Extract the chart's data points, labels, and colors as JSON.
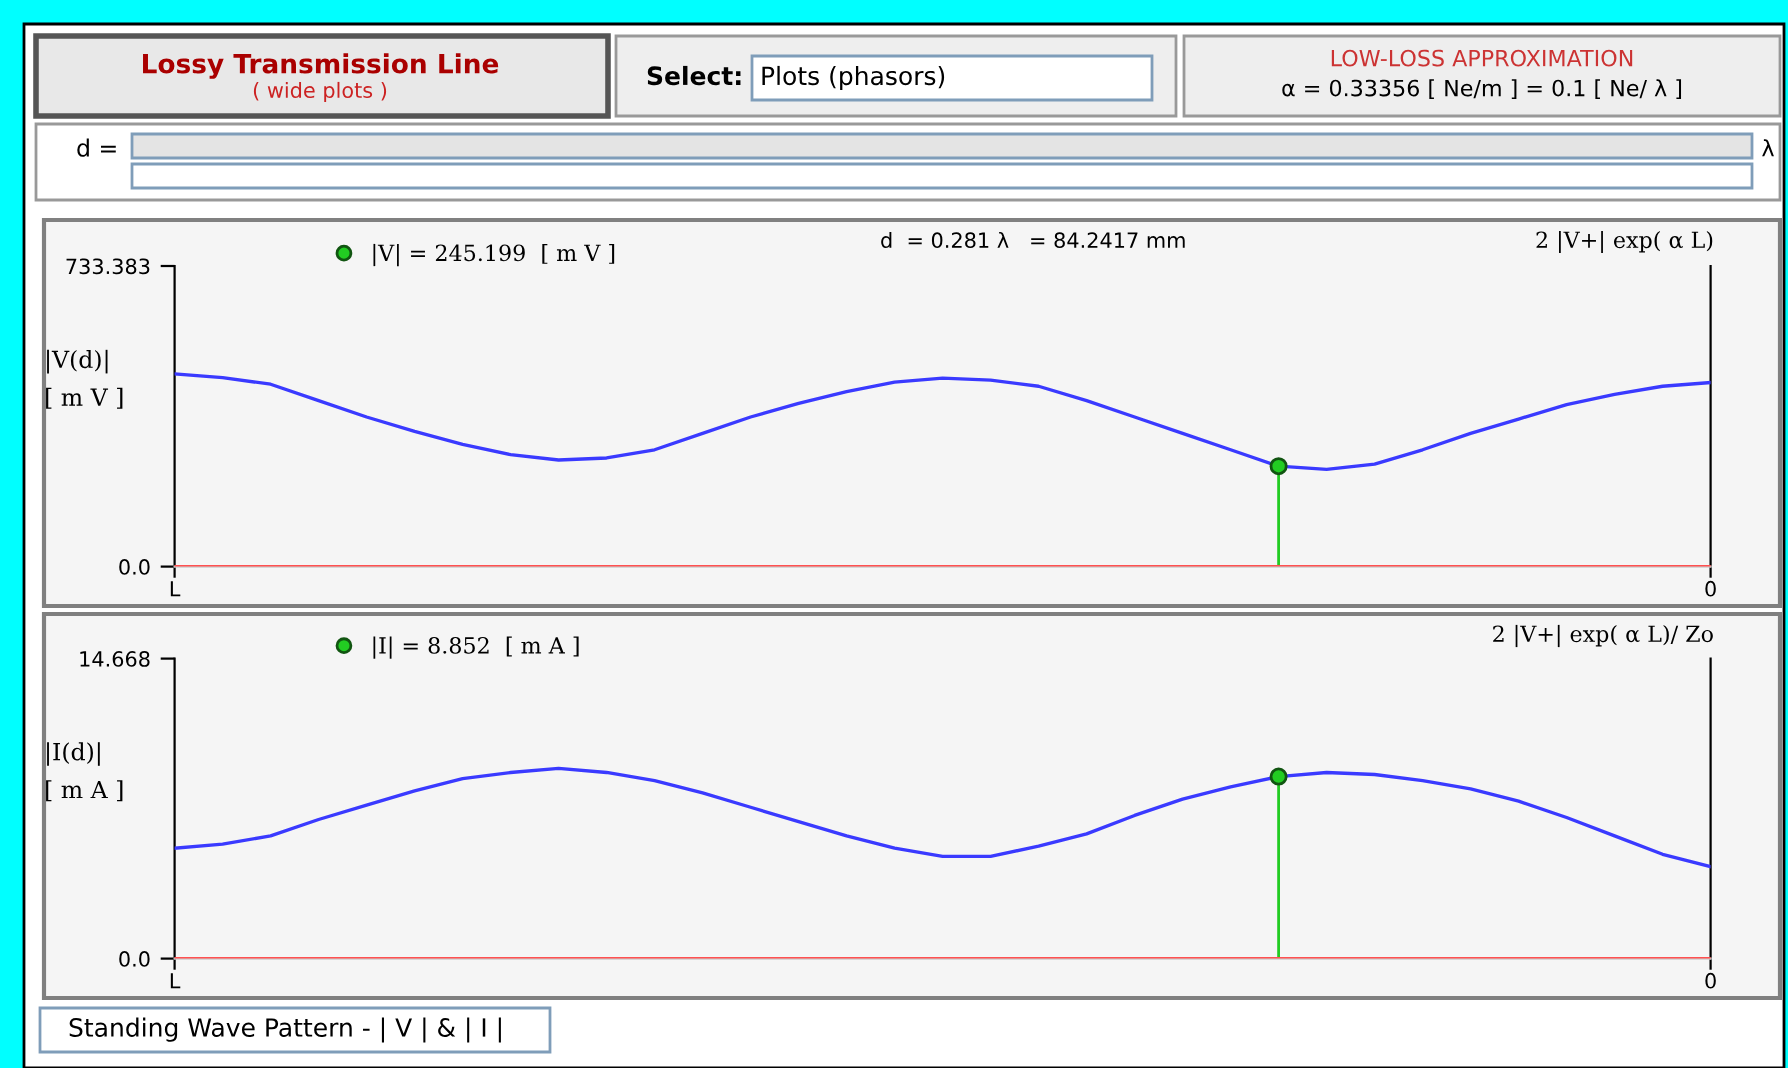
{
  "chart_data": [
    {
      "type": "line",
      "ylabel": "|V(d)|\n[ m V ]",
      "categories": [
        "L",
        null,
        null,
        null,
        null,
        null,
        null,
        null,
        null,
        null,
        null,
        null,
        null,
        null,
        null,
        null,
        null,
        null,
        null,
        null,
        null,
        null,
        null,
        null,
        null,
        null,
        null,
        null,
        null,
        null,
        null,
        null,
        "0"
      ],
      "ylim": [
        0,
        733.383
      ],
      "yticks": [
        {
          "value": 0,
          "label": "0.0"
        },
        733.383
      ],
      "grid": false,
      "legend": "top",
      "line_style": "solid",
      "series": [
        {
          "color": "#3a3aff",
          "values": [
            470,
            461,
            445,
            405,
            365,
            330,
            298,
            273,
            260,
            265,
            285,
            325,
            365,
            398,
            427,
            450,
            460,
            455,
            440,
            405,
            365,
            325,
            285,
            245,
            237,
            250,
            285,
            325,
            360,
            395,
            420,
            440,
            449
          ]
        },
        {
          "type": "lollipop",
          "name": "|V| = 245.199  [ m V ]",
          "color": "#22cc22",
          "values": [
            null,
            null,
            null,
            null,
            null,
            null,
            null,
            null,
            null,
            null,
            null,
            null,
            null,
            null,
            null,
            null,
            null,
            null,
            null,
            null,
            null,
            null,
            null,
            245,
            null,
            null,
            null,
            null,
            null,
            null,
            null,
            null,
            null
          ]
        }
      ],
      "ref_lines": [
        {
          "axis": "y",
          "value": 0,
          "color": "#ff5050"
        }
      ],
      "annotations": [
        "Lossy Transmission Line",
        "( wide plots )",
        "Select:",
        "Plots (phasors)",
        "LOW-LOSS APPROXIMATION",
        "α = 0.33356 [ Ne/m ] = 0.1 [ Ne/ λ ]",
        "d =",
        "λ",
        "d  = 0.281 λ   = 84.2417 mm",
        "2 |V+| exp( α L)",
        "Standing Wave Pattern - | V | & | I |"
      ]
    },
    {
      "type": "line",
      "ylabel": "|I(d)|\n[ m A ]",
      "categories": [
        "L",
        null,
        null,
        null,
        null,
        null,
        null,
        null,
        null,
        null,
        null,
        null,
        null,
        null,
        null,
        null,
        null,
        null,
        null,
        null,
        null,
        null,
        null,
        null,
        null,
        null,
        null,
        null,
        null,
        null,
        null,
        null,
        "0"
      ],
      "ylim": [
        0,
        14.668
      ],
      "yticks": [
        {
          "value": 0,
          "label": "0.0"
        },
        14.668
      ],
      "grid": false,
      "legend": "top",
      "line_style": "solid",
      "series": [
        {
          "color": "#3a3aff",
          "values": [
            5.4,
            5.6,
            6.0,
            6.8,
            7.5,
            8.2,
            8.8,
            9.1,
            9.3,
            9.1,
            8.7,
            8.1,
            7.4,
            6.7,
            6.0,
            5.4,
            5.0,
            5.0,
            5.5,
            6.1,
            7.0,
            7.8,
            8.4,
            8.9,
            9.1,
            9.0,
            8.7,
            8.3,
            7.7,
            6.9,
            6.0,
            5.1,
            4.5
          ]
        },
        {
          "type": "lollipop",
          "name": "|I| = 8.852  [ m A ]",
          "color": "#22cc22",
          "values": [
            null,
            null,
            null,
            null,
            null,
            null,
            null,
            null,
            null,
            null,
            null,
            null,
            null,
            null,
            null,
            null,
            null,
            null,
            null,
            null,
            null,
            null,
            null,
            8.9,
            null,
            null,
            null,
            null,
            null,
            null,
            null,
            null,
            null
          ]
        }
      ],
      "ref_lines": [
        {
          "axis": "y",
          "value": 0,
          "color": "#ff5050"
        }
      ],
      "annotations": [
        "2 |V+| exp( α L)/ Zo"
      ]
    }
  ]
}
